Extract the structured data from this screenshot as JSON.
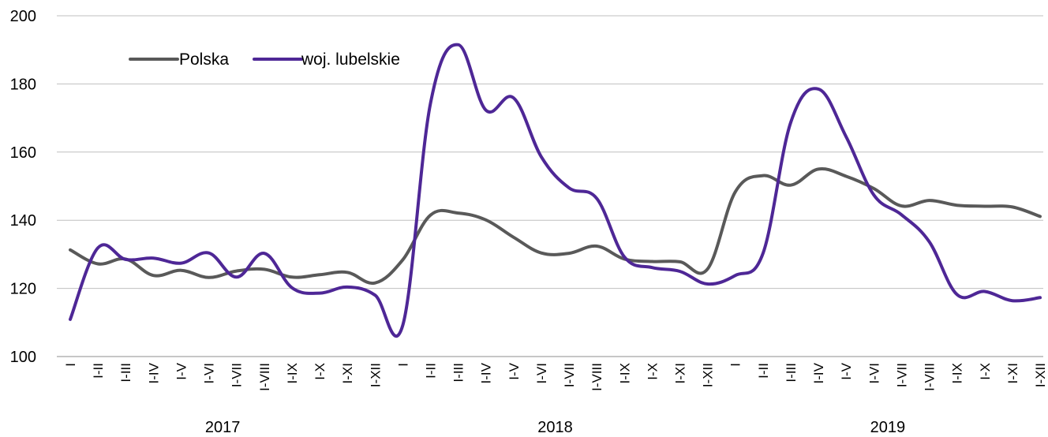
{
  "chart_data": {
    "type": "line",
    "y_axis": {
      "min": 100,
      "max": 200,
      "ticks": [
        100,
        120,
        140,
        160,
        180,
        200
      ]
    },
    "grid": true,
    "legend_position": "top-left",
    "categories": [
      "I",
      "I-II",
      "I-III",
      "I-IV",
      "I-V",
      "I-VI",
      "I-VII",
      "I-VIII",
      "I-IX",
      "I-X",
      "I-XI",
      "I-XII",
      "I",
      "I-II",
      "I-III",
      "I-IV",
      "I-V",
      "I-VI",
      "I-VII",
      "I-VIII",
      "I-IX",
      "I-X",
      "I-XI",
      "I-XII",
      "I",
      "I-II",
      "I-III",
      "I-IV",
      "I-V",
      "I-VI",
      "I-VII",
      "I-VIII",
      "I-IX",
      "I-X",
      "I-XI",
      "I-XII"
    ],
    "groups": [
      {
        "label": "2017",
        "count": 12
      },
      {
        "label": "2018",
        "count": 12
      },
      {
        "label": "2019",
        "count": 12
      }
    ],
    "series": [
      {
        "name": "Polska",
        "color": "#595959",
        "values": [
          131.3,
          127.2,
          128.6,
          123.8,
          125.3,
          123.2,
          125.1,
          125.6,
          123.3,
          124.0,
          124.7,
          121.6,
          128.4,
          141.5,
          142.1,
          140.1,
          135.0,
          130.4,
          130.3,
          132.4,
          128.6,
          127.9,
          127.8,
          125.7,
          148.3,
          153.1,
          150.3,
          155.0,
          152.9,
          149.3,
          144.2,
          145.8,
          144.4,
          144.1,
          143.9,
          141.1
        ]
      },
      {
        "name": "woj. lubelskie",
        "color": "#4e2796",
        "values": [
          110.9,
          131.9,
          128.5,
          128.9,
          127.4,
          130.4,
          123.3,
          130.3,
          120.2,
          118.6,
          120.4,
          118.0,
          109.2,
          174.3,
          191.5,
          172.3,
          175.9,
          158.6,
          149.5,
          146.4,
          129.2,
          126.1,
          125.0,
          121.3,
          123.8,
          130.3,
          168.7,
          178.5,
          164.5,
          147.4,
          141.6,
          133.7,
          118.2,
          119.1,
          116.4,
          117.3
        ]
      }
    ]
  }
}
